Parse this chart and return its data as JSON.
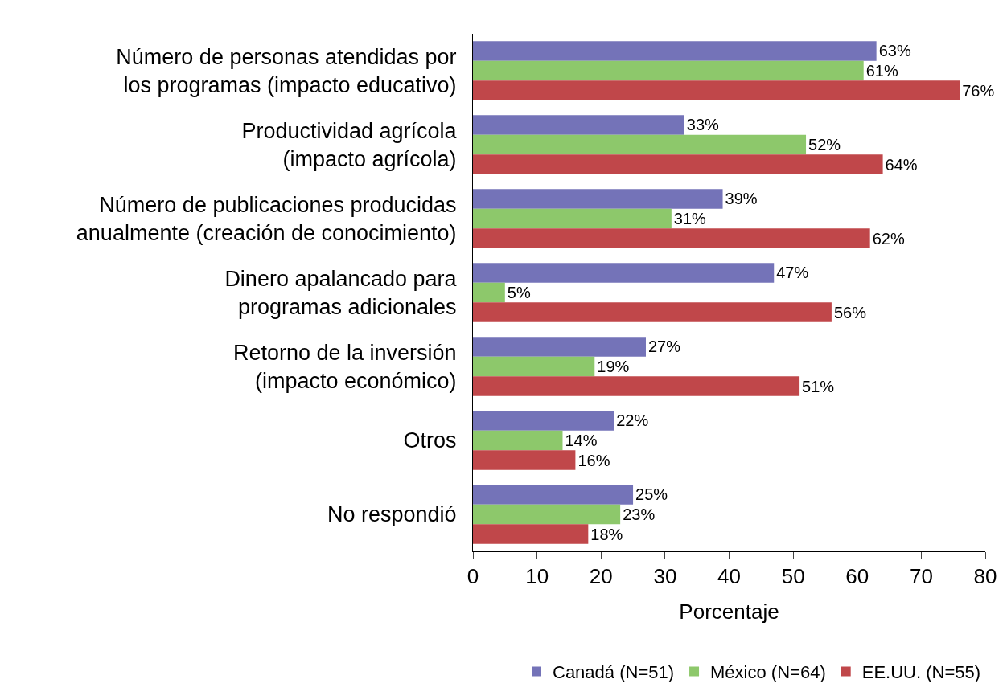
{
  "chart_data": {
    "type": "bar",
    "orientation": "horizontal",
    "xlabel": "Porcentaje",
    "categories": [
      "Número de personas atendidas por\nlos programas (impacto educativo)",
      "Productividad agrícola\n(impacto agrícola)",
      "Número de publicaciones producidas\nanualmente (creación de conocimiento)",
      "Dinero apalancado para\nprogramas adicionales",
      "Retorno de la inversión\n(impacto económico)",
      "Otros",
      "No respondió"
    ],
    "series": [
      {
        "name": "Canadá (N=51)",
        "color": "#7473b8",
        "values": [
          63,
          33,
          39,
          47,
          27,
          22,
          25
        ],
        "value_labels": [
          "63%",
          "33%",
          "39%",
          "47%",
          "27%",
          "22%",
          "25%"
        ]
      },
      {
        "name": "México (N=64)",
        "color": "#8dc86b",
        "values": [
          61,
          52,
          31,
          5,
          19,
          14,
          23
        ],
        "value_labels": [
          "61%",
          "52%",
          "31%",
          "5%",
          "19%",
          "14%",
          "23%"
        ]
      },
      {
        "name": "EE.UU. (N=55)",
        "color": "#c0474a",
        "values": [
          76,
          64,
          62,
          56,
          51,
          16,
          18
        ],
        "value_labels": [
          "76%",
          "64%",
          "62%",
          "56%",
          "51%",
          "16%",
          "18%"
        ]
      }
    ],
    "xlim": [
      0,
      80
    ],
    "xticks": [
      0,
      10,
      20,
      30,
      40,
      50,
      60,
      70,
      80
    ],
    "grid": false,
    "legend": "bottom"
  }
}
